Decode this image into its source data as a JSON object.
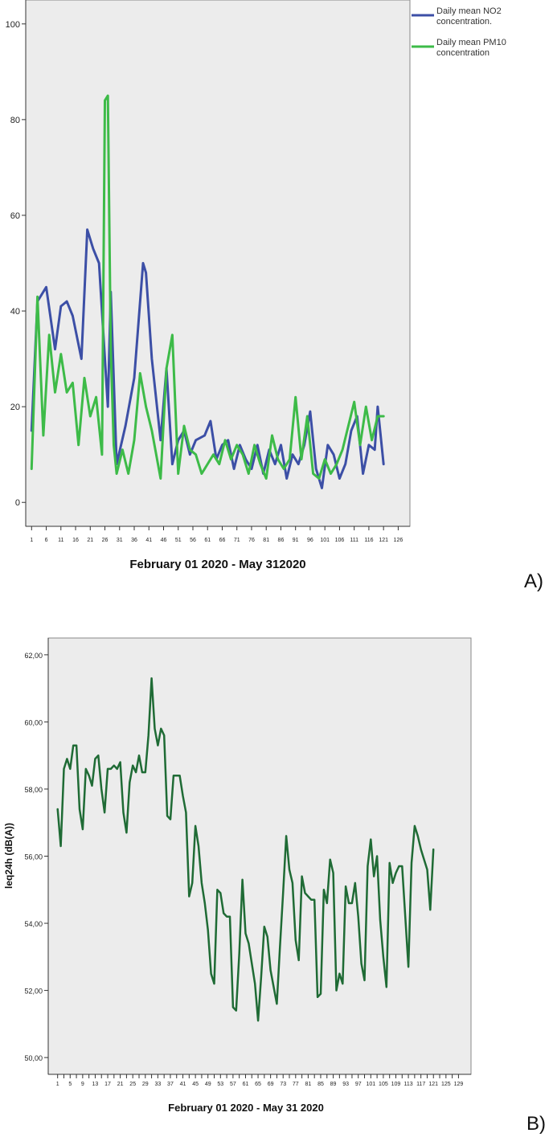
{
  "chart_data": [
    {
      "type": "line",
      "panel_label": "A)",
      "title": "",
      "xlabel": "February 01 2020 - May 312020",
      "ylabel": "",
      "ylim": [
        -5,
        105
      ],
      "yticks": [
        "0",
        "20",
        "40",
        "60",
        "80",
        "100"
      ],
      "ytick_values": [
        0,
        20,
        40,
        60,
        80,
        100
      ],
      "xlim": [
        -1,
        130
      ],
      "xticks": [
        1,
        6,
        11,
        16,
        21,
        26,
        31,
        36,
        41,
        46,
        51,
        56,
        61,
        66,
        71,
        76,
        81,
        86,
        91,
        96,
        101,
        106,
        111,
        116,
        121,
        126
      ],
      "legend_placement": "top-right",
      "background": "#ececec",
      "series": [
        {
          "name": "Daily mean NO2 concentration.",
          "color": "#3c4fa6",
          "x": [
            1,
            3,
            6,
            9,
            11,
            13,
            15,
            18,
            20,
            22,
            24,
            26,
            27,
            28,
            30,
            33,
            36,
            39,
            40,
            42,
            45,
            47,
            49,
            51,
            53,
            55,
            57,
            60,
            62,
            64,
            66,
            68,
            70,
            72,
            74,
            76,
            78,
            80,
            82,
            84,
            86,
            88,
            90,
            92,
            94,
            96,
            98,
            100,
            102,
            104,
            106,
            108,
            110,
            112,
            114,
            116,
            118,
            119,
            121
          ],
          "y": [
            15,
            42,
            45,
            32,
            41,
            42,
            39,
            30,
            57,
            53,
            50,
            30,
            20,
            44,
            8,
            16,
            26,
            50,
            48,
            30,
            13,
            28,
            8,
            13,
            15,
            10,
            13,
            14,
            17,
            9,
            12,
            13,
            7,
            12,
            9,
            7,
            12,
            6,
            11,
            8,
            12,
            5,
            10,
            8,
            12,
            19,
            7,
            3,
            12,
            10,
            5,
            8,
            15,
            18,
            6,
            12,
            11,
            20,
            8
          ]
        },
        {
          "name": "Daily mean PM10 concentration",
          "color": "#3dbb48",
          "x": [
            1,
            3,
            5,
            7,
            9,
            11,
            13,
            15,
            17,
            19,
            21,
            23,
            25,
            26,
            27,
            28,
            29,
            30,
            32,
            34,
            36,
            38,
            40,
            42,
            45,
            47,
            49,
            51,
            53,
            55,
            57,
            59,
            61,
            63,
            65,
            67,
            69,
            71,
            73,
            75,
            77,
            79,
            81,
            83,
            85,
            87,
            89,
            91,
            93,
            95,
            97,
            99,
            101,
            103,
            105,
            107,
            109,
            111,
            113,
            115,
            117,
            119,
            121
          ],
          "y": [
            7,
            43,
            14,
            35,
            23,
            31,
            23,
            25,
            12,
            26,
            18,
            22,
            10,
            84,
            85,
            32,
            12,
            6,
            11,
            6,
            13,
            27,
            20,
            15,
            5,
            28,
            35,
            6,
            16,
            11,
            10,
            6,
            8,
            10,
            8,
            13,
            9,
            12,
            10,
            6,
            12,
            8,
            5,
            14,
            9,
            7,
            9,
            22,
            9,
            18,
            6,
            5,
            9,
            6,
            8,
            11,
            16,
            21,
            12,
            20,
            13,
            18,
            18
          ]
        }
      ]
    },
    {
      "type": "line",
      "panel_label": "B)",
      "title": "",
      "xlabel": "February 01 2020 - May 31 2020",
      "ylabel": "leq24h (dB(A))",
      "ylim": [
        49.5,
        62.5
      ],
      "yticks": [
        "50,00",
        "52,00",
        "54,00",
        "56,00",
        "58,00",
        "60,00",
        "62,00"
      ],
      "ytick_values": [
        50,
        52,
        54,
        56,
        58,
        60,
        62
      ],
      "xlim": [
        -2,
        133
      ],
      "xticks": [
        1,
        3,
        5,
        7,
        9,
        11,
        13,
        15,
        17,
        19,
        21,
        23,
        25,
        27,
        29,
        31,
        33,
        35,
        37,
        39,
        41,
        43,
        45,
        47,
        49,
        51,
        53,
        55,
        57,
        59,
        61,
        63,
        65,
        67,
        69,
        71,
        73,
        75,
        77,
        79,
        81,
        83,
        85,
        87,
        89,
        91,
        93,
        95,
        97,
        99,
        101,
        103,
        105,
        107,
        109,
        111,
        113,
        115,
        117,
        119,
        121,
        123,
        125,
        127,
        129
      ],
      "xtick_labels_shown": [
        1,
        5,
        9,
        13,
        17,
        21,
        25,
        29,
        33,
        37,
        41,
        45,
        49,
        53,
        57,
        61,
        65,
        69,
        73,
        77,
        81,
        85,
        89,
        93,
        97,
        101,
        105,
        109,
        113,
        117,
        121,
        125,
        129
      ],
      "background": "#ececec",
      "series": [
        {
          "color": "#1f6b35",
          "x": [
            1,
            2,
            3,
            4,
            5,
            6,
            7,
            8,
            9,
            10,
            11,
            12,
            13,
            14,
            15,
            16,
            17,
            18,
            19,
            20,
            21,
            22,
            23,
            24,
            25,
            26,
            27,
            28,
            29,
            30,
            31,
            32,
            33,
            34,
            35,
            36,
            37,
            38,
            39,
            40,
            41,
            42,
            43,
            44,
            45,
            46,
            47,
            48,
            49,
            50,
            51,
            52,
            53,
            54,
            55,
            56,
            57,
            58,
            59,
            60,
            61,
            62,
            63,
            64,
            65,
            66,
            67,
            68,
            69,
            70,
            71,
            72,
            73,
            74,
            75,
            76,
            77,
            78,
            79,
            80,
            81,
            82,
            83,
            84,
            85,
            86,
            87,
            88,
            89,
            90,
            91,
            92,
            93,
            94,
            95,
            96,
            97,
            98,
            99,
            100,
            101,
            102,
            103,
            104,
            105,
            106,
            107,
            108,
            109,
            110,
            111,
            112,
            113,
            114,
            115,
            116,
            117,
            118,
            119,
            120,
            121
          ],
          "y": [
            57.4,
            56.3,
            58.6,
            58.9,
            58.6,
            59.3,
            59.3,
            57.4,
            56.8,
            58.6,
            58.4,
            58.1,
            58.9,
            59,
            58,
            57.3,
            58.6,
            58.6,
            58.7,
            58.6,
            58.8,
            57.3,
            56.7,
            58.2,
            58.7,
            58.5,
            59,
            58.5,
            58.5,
            59.6,
            61.3,
            59.8,
            59.3,
            59.8,
            59.6,
            57.2,
            57.1,
            58.4,
            58.4,
            58.4,
            57.8,
            57.3,
            54.8,
            55.2,
            56.9,
            56.3,
            55.2,
            54.6,
            53.8,
            52.5,
            52.2,
            55,
            54.9,
            54.3,
            54.2,
            54.2,
            51.5,
            51.4,
            53.1,
            55.3,
            53.7,
            53.4,
            52.8,
            52.2,
            51.1,
            52.4,
            53.9,
            53.6,
            52.6,
            52.1,
            51.6,
            53.3,
            54.9,
            56.6,
            55.6,
            55.2,
            53.5,
            52.9,
            55.4,
            54.9,
            54.8,
            54.7,
            54.7,
            51.8,
            51.9,
            55,
            54.6,
            55.9,
            55.5,
            52,
            52.5,
            52.2,
            55.1,
            54.6,
            54.6,
            55.2,
            54.2,
            52.8,
            52.3,
            55.7,
            56.5,
            55.4,
            56,
            54.1,
            53,
            52.1,
            55.8,
            55.2,
            55.5,
            55.7,
            55.7,
            54.2,
            52.7,
            55.8,
            56.9,
            56.6,
            56.2,
            55.9,
            55.6,
            54.4,
            56.2
          ]
        }
      ]
    }
  ]
}
